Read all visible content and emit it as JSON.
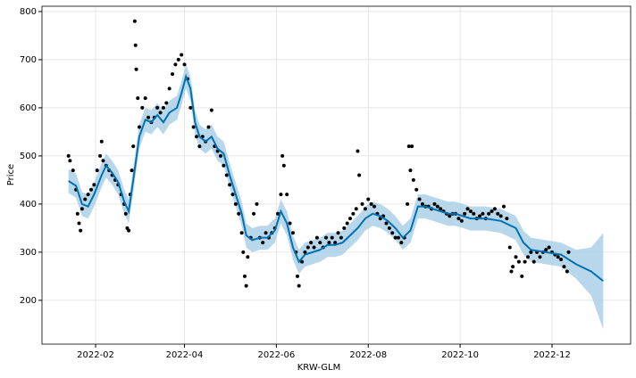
{
  "chart_data": {
    "type": "forecast",
    "xlabel": "KRW-GLM",
    "ylabel": "Price",
    "grid": true,
    "xlim": [
      -4.6,
      386.2
    ],
    "ylim": [
      109,
      811
    ],
    "xticks": [
      {
        "value": 31,
        "label": "2022-02"
      },
      {
        "value": 90,
        "label": "2022-04"
      },
      {
        "value": 151,
        "label": "2022-06"
      },
      {
        "value": 212,
        "label": "2022-08"
      },
      {
        "value": 273,
        "label": "2022-10"
      },
      {
        "value": 334,
        "label": "2022-12"
      }
    ],
    "yticks": [
      200,
      300,
      400,
      500,
      600,
      700,
      800
    ],
    "series": [
      {
        "type": "scatter",
        "color": "#000000",
        "x": [
          13,
          14,
          16,
          18,
          19,
          20,
          21,
          22,
          24,
          26,
          28,
          30,
          32,
          34,
          35,
          36,
          38,
          40,
          42,
          44,
          46,
          48,
          50,
          51,
          52,
          53,
          54,
          55,
          56,
          57,
          57.5,
          58,
          59,
          60,
          62,
          64,
          66,
          68,
          70,
          72,
          74,
          76,
          78,
          80,
          82,
          84,
          86,
          88,
          90,
          92,
          94,
          96,
          98,
          100,
          102,
          104,
          106,
          108,
          110,
          112,
          114,
          116,
          118,
          120,
          122,
          124,
          126,
          128,
          129,
          130,
          131,
          132,
          134,
          136,
          138,
          140,
          142,
          144,
          146,
          148,
          150,
          152,
          154,
          155,
          156,
          158,
          160,
          162,
          164,
          165,
          166,
          168,
          170,
          172,
          174,
          176,
          178,
          180,
          182,
          184,
          186,
          188,
          190,
          192,
          194,
          196,
          198,
          200,
          202,
          204,
          205,
          206,
          208,
          210,
          212,
          214,
          216,
          218,
          220,
          222,
          224,
          226,
          228,
          230,
          232,
          234,
          236,
          238,
          239,
          240,
          241,
          242,
          244,
          246,
          248,
          250,
          252,
          254,
          256,
          258,
          260,
          262,
          264,
          266,
          268,
          270,
          272,
          274,
          276,
          278,
          280,
          282,
          284,
          286,
          288,
          290,
          292,
          294,
          296,
          298,
          300,
          302,
          304,
          306,
          307,
          308,
          310,
          312,
          314,
          316,
          318,
          320,
          322,
          324,
          326,
          328,
          330,
          332,
          334,
          336,
          338,
          340,
          342,
          344,
          345
        ],
        "values": [
          500,
          490,
          470,
          430,
          380,
          360,
          345,
          390,
          410,
          420,
          430,
          440,
          470,
          500,
          530,
          490,
          480,
          470,
          460,
          450,
          440,
          420,
          400,
          380,
          350,
          345,
          420,
          470,
          520,
          780,
          730,
          680,
          620,
          560,
          600,
          620,
          580,
          570,
          580,
          600,
          590,
          600,
          610,
          640,
          670,
          690,
          700,
          710,
          690,
          660,
          600,
          560,
          540,
          520,
          540,
          530,
          560,
          595,
          520,
          510,
          500,
          480,
          460,
          440,
          420,
          400,
          380,
          340,
          300,
          250,
          230,
          290,
          330,
          380,
          400,
          330,
          320,
          340,
          330,
          340,
          350,
          380,
          420,
          500,
          480,
          420,
          360,
          340,
          300,
          250,
          230,
          280,
          300,
          310,
          320,
          310,
          330,
          320,
          310,
          330,
          320,
          330,
          320,
          340,
          330,
          350,
          360,
          370,
          380,
          390,
          510,
          460,
          400,
          390,
          410,
          400,
          395,
          380,
          370,
          375,
          360,
          350,
          340,
          330,
          330,
          320,
          330,
          400,
          520,
          470,
          520,
          450,
          430,
          410,
          400,
          395,
          395,
          390,
          400,
          395,
          390,
          385,
          380,
          375,
          380,
          380,
          370,
          365,
          380,
          390,
          385,
          380,
          370,
          375,
          380,
          370,
          380,
          385,
          390,
          380,
          375,
          395,
          370,
          310,
          260,
          270,
          290,
          280,
          250,
          280,
          290,
          300,
          280,
          300,
          290,
          300,
          305,
          310,
          300,
          295,
          290,
          285,
          270,
          260,
          300
        ]
      },
      {
        "type": "line",
        "color": "#0072B2",
        "band_color": "#a6cde6",
        "x": [
          13,
          18,
          22,
          26,
          30,
          35,
          38,
          42,
          46,
          50,
          53,
          56,
          60,
          64,
          68,
          72,
          76,
          80,
          85,
          88,
          91,
          94,
          97,
          100,
          104,
          108,
          112,
          116,
          120,
          124,
          128,
          131,
          135,
          140,
          145,
          150,
          154,
          158,
          162,
          166,
          170,
          175,
          180,
          185,
          190,
          195,
          200,
          205,
          210,
          215,
          220,
          225,
          230,
          235,
          240,
          245,
          250,
          255,
          260,
          265,
          270,
          275,
          280,
          290,
          300,
          310,
          315,
          320,
          330,
          340,
          350,
          360,
          368
        ],
        "values": [
          448,
          438,
          400,
          395,
          420,
          460,
          480,
          465,
          445,
          405,
          385,
          450,
          540,
          575,
          570,
          585,
          570,
          590,
          600,
          630,
          665,
          640,
          570,
          540,
          530,
          540,
          515,
          505,
          460,
          420,
          380,
          335,
          325,
          330,
          330,
          345,
          385,
          360,
          310,
          280,
          295,
          300,
          305,
          315,
          315,
          320,
          335,
          350,
          370,
          380,
          375,
          365,
          350,
          330,
          345,
          395,
          395,
          390,
          385,
          380,
          380,
          375,
          370,
          370,
          365,
          350,
          320,
          305,
          300,
          295,
          275,
          260,
          240
        ],
        "lower": [
          423,
          413,
          375,
          370,
          395,
          435,
          455,
          440,
          420,
          380,
          360,
          425,
          515,
          550,
          545,
          560,
          545,
          565,
          575,
          605,
          640,
          615,
          545,
          515,
          505,
          515,
          490,
          480,
          435,
          395,
          355,
          310,
          300,
          305,
          305,
          320,
          360,
          335,
          285,
          255,
          270,
          275,
          280,
          290,
          290,
          295,
          310,
          325,
          345,
          355,
          350,
          340,
          325,
          305,
          320,
          370,
          370,
          365,
          360,
          355,
          355,
          350,
          345,
          345,
          340,
          325,
          295,
          280,
          275,
          270,
          245,
          210,
          140
        ],
        "upper": [
          473,
          463,
          425,
          420,
          445,
          485,
          505,
          490,
          470,
          430,
          410,
          475,
          565,
          600,
          595,
          610,
          595,
          615,
          625,
          655,
          690,
          665,
          595,
          565,
          555,
          565,
          540,
          530,
          485,
          445,
          405,
          360,
          350,
          355,
          355,
          370,
          410,
          385,
          335,
          305,
          320,
          325,
          330,
          340,
          340,
          345,
          360,
          375,
          395,
          405,
          400,
          390,
          375,
          355,
          370,
          420,
          420,
          415,
          410,
          405,
          405,
          400,
          395,
          395,
          390,
          375,
          345,
          330,
          325,
          320,
          305,
          310,
          340
        ]
      }
    ]
  }
}
